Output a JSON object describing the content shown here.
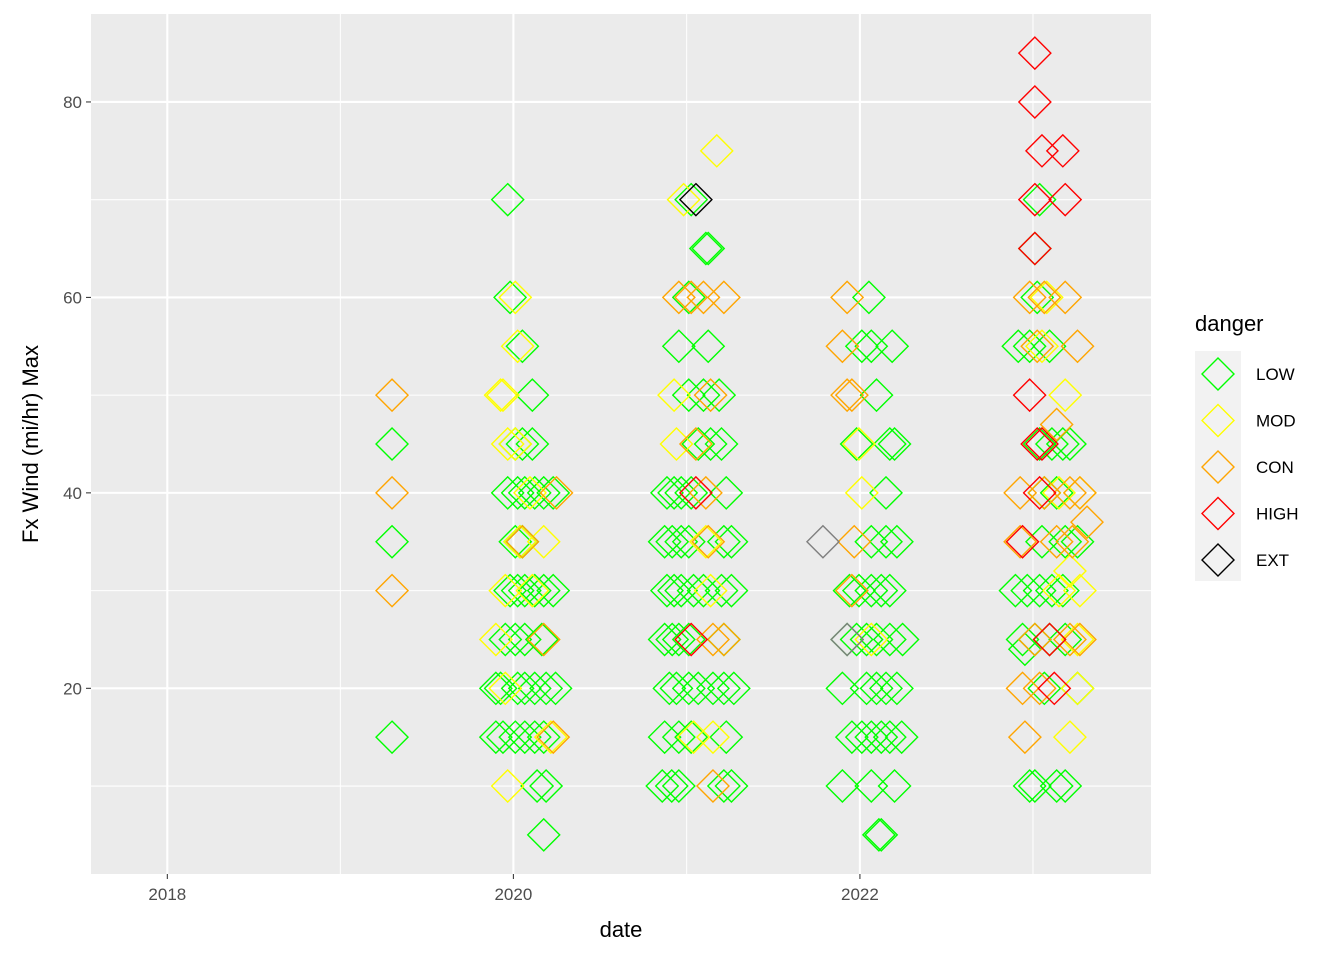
{
  "chart_data": {
    "type": "scatter",
    "xlabel": "date",
    "ylabel": "Fx Wind (mi/hr) Max",
    "x_type": "date",
    "xlim": [
      "2017-07-24",
      "2023-09-07"
    ],
    "ylim": [
      1,
      89
    ],
    "x_ticks": [
      "2018-01-01",
      "2020-01-01",
      "2022-01-01"
    ],
    "x_tick_labels": [
      "2018",
      "2020",
      "2022"
    ],
    "y_ticks": [
      20,
      40,
      60,
      80
    ],
    "y_tick_labels": [
      "20",
      "40",
      "60",
      "80"
    ],
    "grid": true,
    "marker": "open-diamond",
    "legend": {
      "title": "danger",
      "position": "right",
      "entries": [
        {
          "label": "LOW",
          "color": "#00ff00"
        },
        {
          "label": "MOD",
          "color": "#ffff00"
        },
        {
          "label": "CON",
          "color": "#ffa500"
        },
        {
          "label": "HIGH",
          "color": "#ff0000"
        },
        {
          "label": "EXT",
          "color": "#000000"
        }
      ]
    },
    "extra_colors": {
      "NA": "#7f7f7f"
    },
    "series": [
      {
        "name": "LOW",
        "color": "#00ff00",
        "points": [
          [
            "2019-04-20",
            35
          ],
          [
            "2019-04-20",
            45
          ],
          [
            "2019-04-20",
            15
          ],
          [
            "2019-12-20",
            70
          ],
          [
            "2019-12-25",
            60
          ],
          [
            "2020-01-20",
            55
          ],
          [
            "2020-02-10",
            50
          ],
          [
            "2019-12-20",
            40
          ],
          [
            "2020-01-05",
            45
          ],
          [
            "2020-01-20",
            45
          ],
          [
            "2020-02-10",
            45
          ],
          [
            "2020-01-10",
            40
          ],
          [
            "2020-01-25",
            40
          ],
          [
            "2020-02-15",
            40
          ],
          [
            "2020-03-05",
            40
          ],
          [
            "2020-03-25",
            40
          ],
          [
            "2020-01-05",
            35
          ],
          [
            "2020-01-15",
            35
          ],
          [
            "2020-01-20",
            35
          ],
          [
            "2019-12-25",
            30
          ],
          [
            "2020-01-10",
            30
          ],
          [
            "2020-01-25",
            30
          ],
          [
            "2020-02-15",
            30
          ],
          [
            "2020-03-05",
            30
          ],
          [
            "2020-03-25",
            30
          ],
          [
            "2019-12-15",
            25
          ],
          [
            "2020-01-05",
            25
          ],
          [
            "2020-01-25",
            25
          ],
          [
            "2020-03-01",
            25
          ],
          [
            "2019-11-25",
            20
          ],
          [
            "2019-12-05",
            20
          ],
          [
            "2020-01-10",
            20
          ],
          [
            "2020-01-25",
            20
          ],
          [
            "2020-02-15",
            20
          ],
          [
            "2020-03-10",
            20
          ],
          [
            "2020-03-30",
            20
          ],
          [
            "2019-11-25",
            15
          ],
          [
            "2019-12-10",
            15
          ],
          [
            "2020-01-05",
            15
          ],
          [
            "2020-01-25",
            15
          ],
          [
            "2020-02-15",
            15
          ],
          [
            "2020-03-05",
            15
          ],
          [
            "2020-02-20",
            10
          ],
          [
            "2020-03-10",
            10
          ],
          [
            "2020-03-05",
            5
          ],
          [
            "2021-01-10",
            70
          ],
          [
            "2021-02-10",
            65
          ],
          [
            "2021-02-15",
            65
          ],
          [
            "2021-01-05",
            60
          ],
          [
            "2020-12-15",
            55
          ],
          [
            "2021-02-15",
            55
          ],
          [
            "2021-01-05",
            50
          ],
          [
            "2021-02-05",
            50
          ],
          [
            "2021-03-10",
            50
          ],
          [
            "2021-01-25",
            45
          ],
          [
            "2021-02-20",
            45
          ],
          [
            "2021-03-15",
            45
          ],
          [
            "2020-11-20",
            40
          ],
          [
            "2020-12-05",
            40
          ],
          [
            "2020-12-20",
            40
          ],
          [
            "2021-01-10",
            40
          ],
          [
            "2021-03-25",
            40
          ],
          [
            "2020-11-15",
            35
          ],
          [
            "2020-12-01",
            35
          ],
          [
            "2020-12-20",
            35
          ],
          [
            "2021-01-05",
            35
          ],
          [
            "2021-03-20",
            35
          ],
          [
            "2021-04-05",
            35
          ],
          [
            "2020-11-20",
            30
          ],
          [
            "2020-12-05",
            30
          ],
          [
            "2020-12-20",
            30
          ],
          [
            "2021-01-15",
            30
          ],
          [
            "2021-02-05",
            30
          ],
          [
            "2021-03-15",
            30
          ],
          [
            "2021-04-05",
            30
          ],
          [
            "2020-11-15",
            25
          ],
          [
            "2020-12-01",
            25
          ],
          [
            "2020-12-15",
            25
          ],
          [
            "2021-01-05",
            25
          ],
          [
            "2021-03-20",
            25
          ],
          [
            "2020-11-25",
            20
          ],
          [
            "2020-12-10",
            20
          ],
          [
            "2021-01-05",
            20
          ],
          [
            "2021-01-25",
            20
          ],
          [
            "2021-02-25",
            20
          ],
          [
            "2021-03-20",
            20
          ],
          [
            "2021-04-10",
            20
          ],
          [
            "2020-11-15",
            15
          ],
          [
            "2020-12-15",
            15
          ],
          [
            "2021-01-10",
            15
          ],
          [
            "2021-03-25",
            15
          ],
          [
            "2020-11-10",
            10
          ],
          [
            "2020-11-30",
            10
          ],
          [
            "2020-12-15",
            10
          ],
          [
            "2021-03-20",
            10
          ],
          [
            "2021-04-05",
            10
          ],
          [
            "2022-01-20",
            60
          ],
          [
            "2022-01-05",
            55
          ],
          [
            "2022-01-25",
            55
          ],
          [
            "2022-03-10",
            55
          ],
          [
            "2022-02-05",
            50
          ],
          [
            "2021-12-25",
            45
          ],
          [
            "2022-03-05",
            45
          ],
          [
            "2022-03-15",
            45
          ],
          [
            "2022-02-25",
            40
          ],
          [
            "2022-01-25",
            35
          ],
          [
            "2022-02-25",
            35
          ],
          [
            "2022-03-20",
            35
          ],
          [
            "2021-12-10",
            30
          ],
          [
            "2021-12-30",
            30
          ],
          [
            "2022-01-25",
            30
          ],
          [
            "2022-02-15",
            30
          ],
          [
            "2022-03-05",
            30
          ],
          [
            "2021-12-05",
            25
          ],
          [
            "2021-12-25",
            25
          ],
          [
            "2022-01-15",
            25
          ],
          [
            "2022-02-05",
            25
          ],
          [
            "2022-03-05",
            25
          ],
          [
            "2022-04-01",
            25
          ],
          [
            "2021-11-25",
            20
          ],
          [
            "2022-01-15",
            20
          ],
          [
            "2022-02-05",
            20
          ],
          [
            "2022-02-25",
            20
          ],
          [
            "2022-03-20",
            20
          ],
          [
            "2021-12-15",
            15
          ],
          [
            "2022-01-05",
            15
          ],
          [
            "2022-01-25",
            15
          ],
          [
            "2022-02-15",
            15
          ],
          [
            "2022-03-05",
            15
          ],
          [
            "2022-03-30",
            15
          ],
          [
            "2021-11-25",
            10
          ],
          [
            "2022-01-25",
            10
          ],
          [
            "2022-03-15",
            10
          ],
          [
            "2022-02-10",
            5
          ],
          [
            "2022-02-15",
            5
          ],
          [
            "2023-01-15",
            70
          ],
          [
            "2023-01-05",
            65
          ],
          [
            "2023-01-10",
            60
          ],
          [
            "2022-12-01",
            55
          ],
          [
            "2022-12-25",
            55
          ],
          [
            "2023-02-05",
            55
          ],
          [
            "2023-01-15",
            45
          ],
          [
            "2023-02-10",
            45
          ],
          [
            "2023-03-05",
            45
          ],
          [
            "2023-03-20",
            45
          ],
          [
            "2023-01-25",
            40
          ],
          [
            "2023-02-20",
            40
          ],
          [
            "2023-01-20",
            35
          ],
          [
            "2023-03-10",
            35
          ],
          [
            "2023-04-05",
            35
          ],
          [
            "2022-11-25",
            30
          ],
          [
            "2022-12-20",
            30
          ],
          [
            "2023-01-15",
            30
          ],
          [
            "2023-02-10",
            30
          ],
          [
            "2023-03-05",
            30
          ],
          [
            "2022-12-10",
            25
          ],
          [
            "2023-01-05",
            25
          ],
          [
            "2023-02-05",
            25
          ],
          [
            "2023-03-10",
            25
          ],
          [
            "2022-12-15",
            24
          ],
          [
            "2023-01-25",
            20
          ],
          [
            "2023-04-05",
            20
          ],
          [
            "2022-12-25",
            10
          ],
          [
            "2023-01-05",
            10
          ],
          [
            "2023-02-20",
            10
          ],
          [
            "2023-03-10",
            10
          ]
        ]
      },
      {
        "name": "MOD",
        "color": "#ffff00",
        "points": [
          [
            "2019-12-05",
            50
          ],
          [
            "2019-12-10",
            50
          ],
          [
            "2019-12-20",
            45
          ],
          [
            "2020-01-05",
            60
          ],
          [
            "2020-01-10",
            55
          ],
          [
            "2020-01-05",
            45
          ],
          [
            "2020-02-05",
            40
          ],
          [
            "2020-01-15",
            35
          ],
          [
            "2020-03-05",
            35
          ],
          [
            "2019-12-15",
            30
          ],
          [
            "2020-02-10",
            30
          ],
          [
            "2019-11-25",
            25
          ],
          [
            "2019-12-15",
            20
          ],
          [
            "2020-03-20",
            15
          ],
          [
            "2019-12-20",
            10
          ],
          [
            "2021-03-05",
            75
          ],
          [
            "2020-12-25",
            70
          ],
          [
            "2020-12-05",
            50
          ],
          [
            "2020-12-10",
            45
          ],
          [
            "2021-02-10",
            35
          ],
          [
            "2021-02-20",
            30
          ],
          [
            "2021-01-15",
            15
          ],
          [
            "2021-02-25",
            15
          ],
          [
            "2021-12-30",
            45
          ],
          [
            "2022-01-05",
            40
          ],
          [
            "2022-01-25",
            25
          ],
          [
            "2023-01-20",
            55
          ],
          [
            "2023-01-30",
            60
          ],
          [
            "2023-03-10",
            50
          ],
          [
            "2023-02-25",
            40
          ],
          [
            "2023-04-10",
            40
          ],
          [
            "2023-03-20",
            32
          ],
          [
            "2023-02-25",
            30
          ],
          [
            "2023-04-10",
            30
          ],
          [
            "2023-04-05",
            25
          ],
          [
            "2023-04-05",
            20
          ],
          [
            "2023-03-20",
            15
          ]
        ]
      },
      {
        "name": "CON",
        "color": "#ffa500",
        "points": [
          [
            "2019-04-20",
            50
          ],
          [
            "2019-04-20",
            40
          ],
          [
            "2019-04-20",
            30
          ],
          [
            "2020-01-20",
            35
          ],
          [
            "2020-04-01",
            40
          ],
          [
            "2020-03-05",
            25
          ],
          [
            "2020-03-25",
            15
          ],
          [
            "2020-12-15",
            60
          ],
          [
            "2021-01-10",
            60
          ],
          [
            "2021-02-05",
            60
          ],
          [
            "2021-03-20",
            60
          ],
          [
            "2021-02-20",
            50
          ],
          [
            "2021-01-20",
            45
          ],
          [
            "2021-02-10",
            40
          ],
          [
            "2021-02-15",
            35
          ],
          [
            "2021-02-25",
            25
          ],
          [
            "2021-03-20",
            25
          ],
          [
            "2021-02-25",
            10
          ],
          [
            "2021-12-05",
            60
          ],
          [
            "2021-11-25",
            55
          ],
          [
            "2021-12-05",
            50
          ],
          [
            "2021-12-15",
            50
          ],
          [
            "2021-12-20",
            35
          ],
          [
            "2021-12-15",
            30
          ],
          [
            "2022-12-25",
            60
          ],
          [
            "2023-01-25",
            60
          ],
          [
            "2023-03-10",
            60
          ],
          [
            "2023-01-10",
            55
          ],
          [
            "2023-04-05",
            55
          ],
          [
            "2023-02-20",
            47
          ],
          [
            "2022-12-05",
            40
          ],
          [
            "2023-01-25",
            40
          ],
          [
            "2023-03-20",
            40
          ],
          [
            "2023-04-10",
            40
          ],
          [
            "2023-04-25",
            37
          ],
          [
            "2022-12-05",
            35
          ],
          [
            "2023-02-20",
            35
          ],
          [
            "2023-03-25",
            35
          ],
          [
            "2023-01-05",
            25
          ],
          [
            "2023-03-20",
            25
          ],
          [
            "2023-04-10",
            25
          ],
          [
            "2022-12-10",
            20
          ],
          [
            "2023-01-15",
            20
          ],
          [
            "2022-12-15",
            15
          ]
        ]
      },
      {
        "name": "HIGH",
        "color": "#ff0000",
        "points": [
          [
            "2021-01-20",
            40
          ],
          [
            "2021-01-10",
            25
          ],
          [
            "2022-12-25",
            50
          ],
          [
            "2023-01-20",
            45
          ],
          [
            "2023-01-10",
            45
          ],
          [
            "2022-12-10",
            35
          ],
          [
            "2023-01-15",
            40
          ],
          [
            "2023-02-05",
            25
          ],
          [
            "2023-02-15",
            20
          ],
          [
            "2023-01-05",
            65
          ],
          [
            "2023-01-05",
            70
          ],
          [
            "2023-01-20",
            75
          ],
          [
            "2023-03-05",
            75
          ],
          [
            "2023-03-10",
            70
          ],
          [
            "2023-01-05",
            80
          ],
          [
            "2023-01-05",
            85
          ]
        ]
      },
      {
        "name": "EXT",
        "color": "#000000",
        "points": [
          [
            "2021-01-20",
            70
          ]
        ]
      },
      {
        "name": "NA",
        "color": "#7f7f7f",
        "points": [
          [
            "2021-10-15",
            35
          ],
          [
            "2021-12-05",
            25
          ]
        ]
      }
    ]
  }
}
